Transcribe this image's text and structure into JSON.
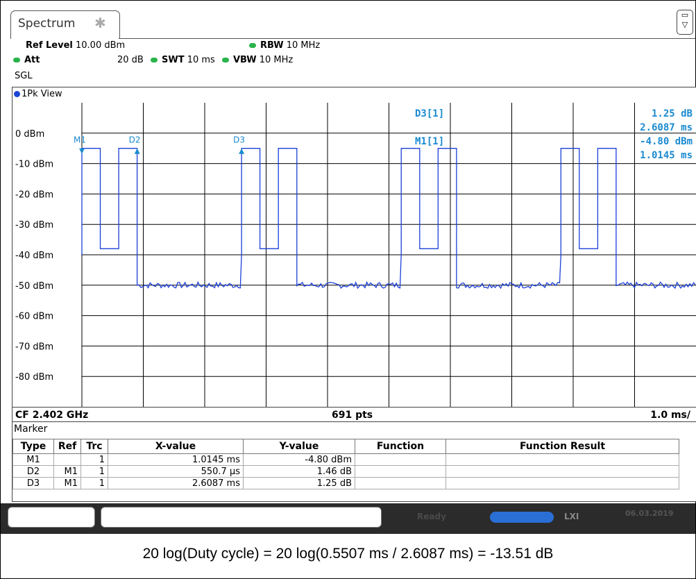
{
  "tab": {
    "title": "Spectrum",
    "icon": "pin-icon"
  },
  "params": {
    "ref_level_label": "Ref Level",
    "ref_level_value": "10.00 dBm",
    "att_label": "Att",
    "att_value": "20 dB",
    "swt_label": "SWT",
    "swt_value": "10 ms",
    "rbw_label": "RBW",
    "rbw_value": "10 MHz",
    "vbw_label": "VBW",
    "vbw_value": "10 MHz",
    "sweep_mode": "SGL"
  },
  "diagram": {
    "view_label": "1Pk View",
    "y_ticks": [
      "0 dBm",
      "-10 dBm",
      "-20 dBm",
      "-30 dBm",
      "-40 dBm",
      "-50 dBm",
      "-60 dBm",
      "-70 dBm",
      "-80 dBm"
    ],
    "marker_labels": [
      "M1",
      "D2",
      "D3"
    ],
    "readout": {
      "d3_label": "D3[1]",
      "d3_value": "1.25 dB",
      "d3_time": "2.6087 ms",
      "m1_label": "M1[1]",
      "m1_value": "-4.80 dBm",
      "m1_time": "1.0145 ms"
    },
    "footer_cf": "CF 2.402 GHz",
    "footer_pts": "691 pts",
    "footer_div": "1.0 ms/"
  },
  "colors": {
    "trace": "#1a3fd8",
    "marker": "#1a8ad0",
    "grid": "#000000"
  },
  "marker_table": {
    "title": "Marker",
    "headers": [
      "Type",
      "Ref",
      "Trc",
      "X-value",
      "Y-value",
      "Function",
      "Function Result"
    ],
    "rows": [
      [
        "M1",
        "",
        "1",
        "1.0145 ms",
        "-4.80 dBm",
        "",
        ""
      ],
      [
        "D2",
        "M1",
        "1",
        "550.7 µs",
        "1.46 dB",
        "",
        ""
      ],
      [
        "D3",
        "M1",
        "1",
        "2.6087 ms",
        "1.25 dB",
        "",
        ""
      ]
    ]
  },
  "status": {
    "ready": "Ready",
    "lxi": "LXI",
    "date": "06.03.2019"
  },
  "caption": "20 log(Duty cycle) = 20 log(0.5507 ms / 2.6087 ms) = -13.51 dB",
  "chart_data": {
    "type": "line",
    "x_unit": "ms",
    "y_unit": "dBm",
    "xlim": [
      0,
      10
    ],
    "ylim": [
      -90,
      10
    ],
    "bursts": [
      {
        "start": 0.0,
        "m1_end": 0.3,
        "gap_start": 0.3,
        "gap_end": 0.6,
        "end": 0.9,
        "level": -5
      },
      {
        "start": 2.6,
        "m1_end": 2.9,
        "gap_start": 2.9,
        "gap_end": 3.2,
        "end": 3.5,
        "level": -5
      },
      {
        "start": 5.2,
        "m1_end": 5.5,
        "gap_start": 5.5,
        "gap_end": 5.8,
        "end": 6.1,
        "level": -5
      },
      {
        "start": 7.8,
        "m1_end": 8.1,
        "gap_start": 8.1,
        "gap_end": 8.4,
        "end": 8.7,
        "level": -5
      }
    ],
    "noise_floor": -50
  }
}
